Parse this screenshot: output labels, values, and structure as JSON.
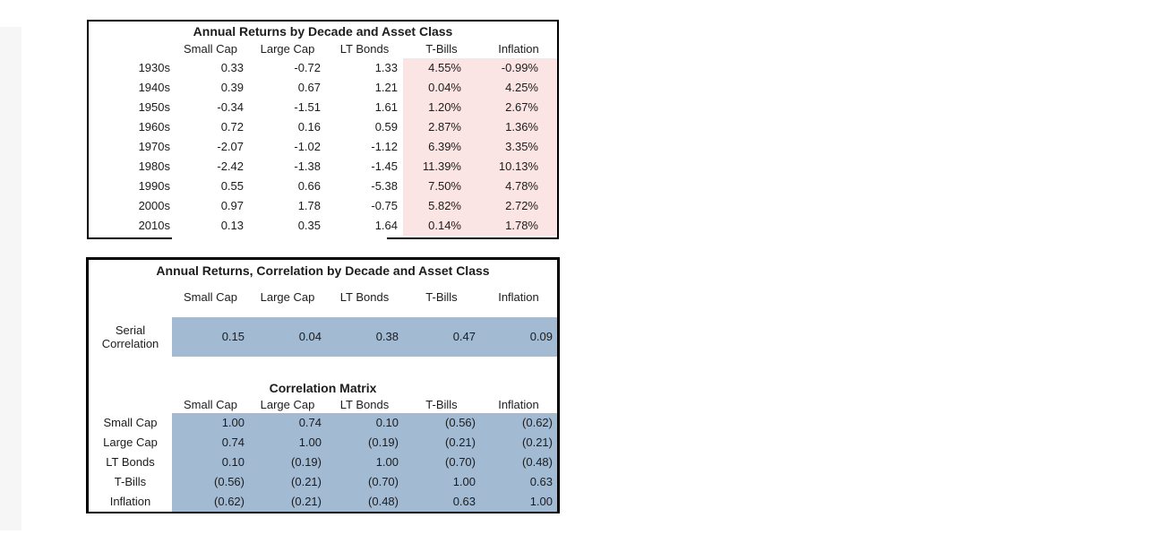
{
  "colors": {
    "pink_fill": "#fbe5e4",
    "blue_fill": "#a2bad2",
    "border": "#000000",
    "edge_strip": "#f6f6f6",
    "background": "#ffffff"
  },
  "chart_data": [
    {
      "type": "table",
      "title": "Annual Returns by Decade and Asset Class",
      "columns": [
        "Small Cap",
        "Large Cap",
        "LT Bonds",
        "T-Bills",
        "Inflation"
      ],
      "highlight_note": "T-Bills and Inflation columns shaded pink",
      "rows": [
        {
          "label": "1930s",
          "values": [
            "0.33",
            "-0.72",
            "1.33",
            "4.55%",
            "-0.99%"
          ]
        },
        {
          "label": "1940s",
          "values": [
            "0.39",
            "0.67",
            "1.21",
            "0.04%",
            "4.25%"
          ]
        },
        {
          "label": "1950s",
          "values": [
            "-0.34",
            "-1.51",
            "1.61",
            "1.20%",
            "2.67%"
          ]
        },
        {
          "label": "1960s",
          "values": [
            "0.72",
            "0.16",
            "0.59",
            "2.87%",
            "1.36%"
          ]
        },
        {
          "label": "1970s",
          "values": [
            "-2.07",
            "-1.02",
            "-1.12",
            "6.39%",
            "3.35%"
          ]
        },
        {
          "label": "1980s",
          "values": [
            "-2.42",
            "-1.38",
            "-1.45",
            "11.39%",
            "10.13%"
          ]
        },
        {
          "label": "1990s",
          "values": [
            "0.55",
            "0.66",
            "-5.38",
            "7.50%",
            "4.78%"
          ]
        },
        {
          "label": "2000s",
          "values": [
            "0.97",
            "1.78",
            "-0.75",
            "5.82%",
            "2.72%"
          ]
        },
        {
          "label": "2010s",
          "values": [
            "0.13",
            "0.35",
            "1.64",
            "0.14%",
            "1.78%"
          ]
        }
      ]
    },
    {
      "type": "table",
      "title": "Annual Returns, Correlation by Decade and Asset Class",
      "columns": [
        "Small Cap",
        "Large Cap",
        "LT Bonds",
        "T-Bills",
        "Inflation"
      ],
      "serial_row": {
        "label_line1": "Serial",
        "label_line2": "Correlation",
        "values": [
          "0.15",
          "0.04",
          "0.38",
          "0.47",
          "0.09"
        ],
        "highlight_note": "values shaded blue"
      },
      "matrix": {
        "title": "Correlation Matrix",
        "columns": [
          "Small Cap",
          "Large Cap",
          "LT Bonds",
          "T-Bills",
          "Inflation"
        ],
        "highlight_note": "matrix values shaded blue",
        "rows": [
          {
            "label": "Small Cap",
            "values": [
              "1.00",
              "0.74",
              "0.10",
              "(0.56)",
              "(0.62)"
            ]
          },
          {
            "label": "Large Cap",
            "values": [
              "0.74",
              "1.00",
              "(0.19)",
              "(0.21)",
              "(0.21)"
            ]
          },
          {
            "label": "LT Bonds",
            "values": [
              "0.10",
              "(0.19)",
              "1.00",
              "(0.70)",
              "(0.48)"
            ]
          },
          {
            "label": "T-Bills",
            "values": [
              "(0.56)",
              "(0.21)",
              "(0.70)",
              "1.00",
              "0.63"
            ]
          },
          {
            "label": "Inflation",
            "values": [
              "(0.62)",
              "(0.21)",
              "(0.48)",
              "0.63",
              "1.00"
            ]
          }
        ]
      }
    }
  ]
}
